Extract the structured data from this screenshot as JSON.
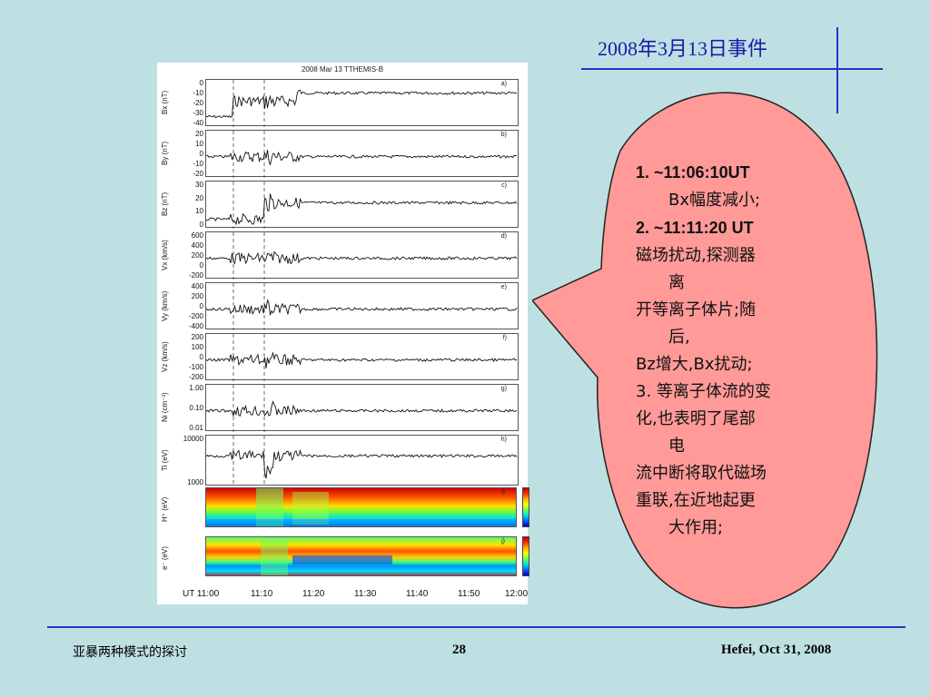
{
  "slide": {
    "title": "2008年3月13日事件",
    "figure_title": "2008 Mar 13 TTHEMIS-B",
    "panels": [
      {
        "label": "a)",
        "ylabel": "Bx (nT)",
        "ticks": [
          "0",
          "-10",
          "-20",
          "-30",
          "-40"
        ]
      },
      {
        "label": "b)",
        "ylabel": "By (nT)",
        "ticks": [
          "20",
          "10",
          "0",
          "-10",
          "-20"
        ]
      },
      {
        "label": "c)",
        "ylabel": "Bz (nT)",
        "ticks": [
          "30",
          "20",
          "10",
          "0"
        ]
      },
      {
        "label": "d)",
        "ylabel": "Vx (km/s)",
        "ticks": [
          "600",
          "400",
          "200",
          "0",
          "-200"
        ]
      },
      {
        "label": "e)",
        "ylabel": "Vy (km/s)",
        "ticks": [
          "400",
          "200",
          "0",
          "-200",
          "-400"
        ]
      },
      {
        "label": "f)",
        "ylabel": "Vz (km/s)",
        "ticks": [
          "200",
          "100",
          "0",
          "-100",
          "-200"
        ]
      },
      {
        "label": "g)",
        "ylabel": "Ni (cm⁻³)",
        "ticks": [
          "1.00",
          "0.10",
          "0.01"
        ]
      },
      {
        "label": "h)",
        "ylabel": "Ti (eV)",
        "ticks": [
          "10000",
          "1000"
        ]
      }
    ],
    "spectrograms": [
      {
        "label": "i)",
        "ylabel": "H⁺ (eV)"
      },
      {
        "label": "j)",
        "ylabel": "e⁻ (eV)"
      }
    ],
    "time_axis": [
      "UT 11:00",
      "11:10",
      "11:20",
      "11:30",
      "11:40",
      "11:50",
      "12:00"
    ],
    "bubble_lines": [
      {
        "text": "1. ~11:06:10UT",
        "indent": false,
        "bold": true
      },
      {
        "text": "Bx幅度减小;",
        "indent": true,
        "bold": false
      },
      {
        "text": "2. ~11:11:20 UT",
        "indent": false,
        "bold": true
      },
      {
        "text": "磁场扰动,探测器",
        "indent": false,
        "bold": false
      },
      {
        "text": "离",
        "indent": true,
        "bold": false
      },
      {
        "text": "开等离子体片;随",
        "indent": false,
        "bold": false
      },
      {
        "text": "后,",
        "indent": true,
        "bold": false
      },
      {
        "text": "Bz增大,Bx扰动;",
        "indent": false,
        "bold": false
      },
      {
        "text": "3. 等离子体流的变",
        "indent": false,
        "bold": false
      },
      {
        "text": "化,也表明了尾部",
        "indent": false,
        "bold": false
      },
      {
        "text": "电",
        "indent": true,
        "bold": false
      },
      {
        "text": "流中断将取代磁场",
        "indent": false,
        "bold": false
      },
      {
        "text": "重联,在近地起更",
        "indent": false,
        "bold": false
      },
      {
        "text": "大作用;",
        "indent": true,
        "bold": false
      }
    ],
    "footer": {
      "left": "亚暴两种模式的探讨",
      "page": "28",
      "right": "Hefei, Oct 31, 2008"
    },
    "colors": {
      "background": "#bfe0e3",
      "accent": "#1f35c9",
      "title": "#1a1aa6",
      "bubble": "#ff9a98"
    }
  }
}
